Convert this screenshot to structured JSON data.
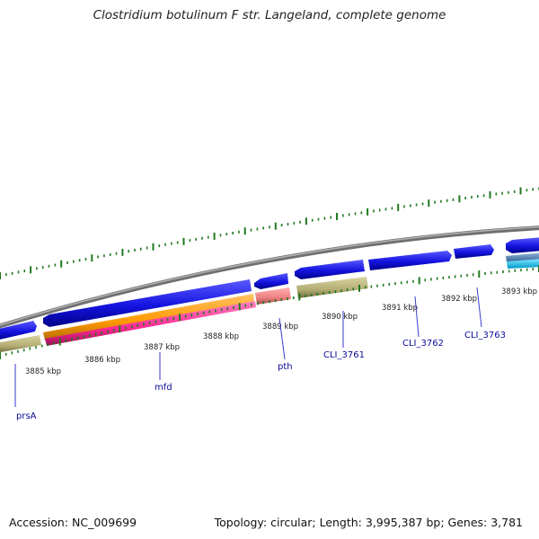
{
  "title": "Clostridium botulinum F str. Langeland, complete genome",
  "footer": {
    "accession": "Accession: NC_009699",
    "summary": "Topology: circular; Length: 3,995,387 bp; Genes: 3,781"
  },
  "colors": {
    "backbone": "#8a8a8a",
    "cds": "#1a1ae6",
    "cds_dark": "#000099",
    "feature_olive": "#b8b27a",
    "feature_orange": "#ff9900",
    "feature_pink": "#ff3399",
    "feature_salmon": "#f08080",
    "feature_steel": "#4682b4",
    "feature_cyan": "#00ccff",
    "gc_ticks": "#1f7a1f",
    "label_blue": "#000099"
  },
  "scale_labels": [
    "3885 kbp",
    "3886 kbp",
    "3887 kbp",
    "3888 kbp",
    "3889 kbp",
    "3890 kbp",
    "3891 kbp",
    "3892 kbp",
    "3893 kbp"
  ],
  "genes": [
    "prsA",
    "mfd",
    "pth",
    "CLI_3761",
    "CLI_3762",
    "CLI_3763"
  ]
}
